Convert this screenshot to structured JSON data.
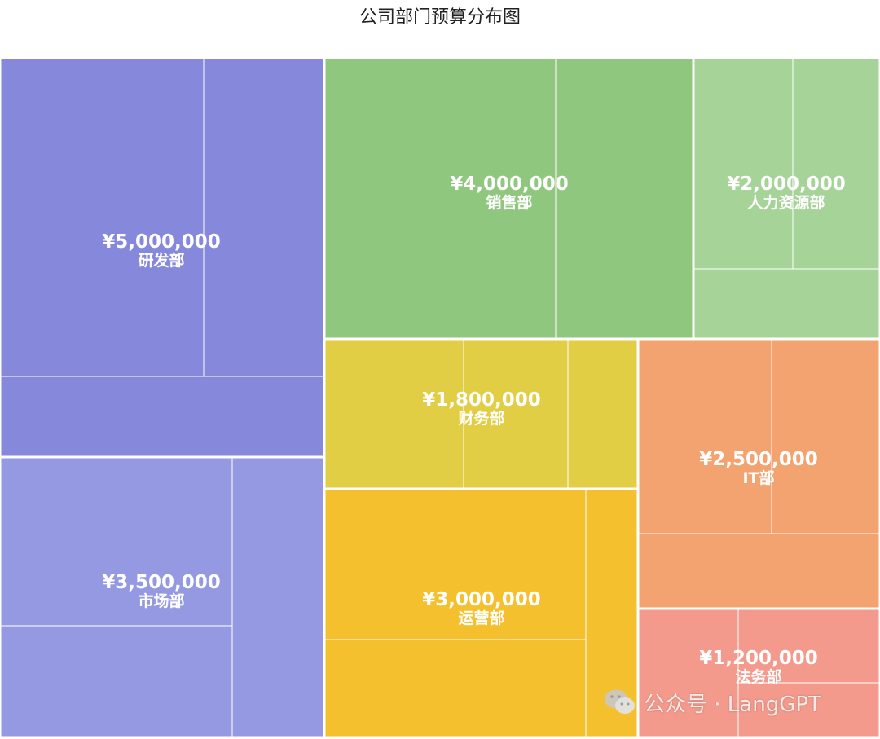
{
  "chart_data": {
    "type": "treemap",
    "title": "公司部门预算分布图",
    "currency_symbol": "¥",
    "nodes": [
      {
        "name": "研发部",
        "value": 5000000,
        "color": "#8588DB"
      },
      {
        "name": "市场部",
        "value": 3500000,
        "color": "#9499E1"
      },
      {
        "name": "销售部",
        "value": 4000000,
        "color": "#90C77E"
      },
      {
        "name": "人力资源部",
        "value": 2000000,
        "color": "#A5D398"
      },
      {
        "name": "财务部",
        "value": 1800000,
        "color": "#E2CE45"
      },
      {
        "name": "运营部",
        "value": 3000000,
        "color": "#F5C02E"
      },
      {
        "name": "IT部",
        "value": 2500000,
        "color": "#F2A370"
      },
      {
        "name": "法务部",
        "value": 1200000,
        "color": "#F49A8C"
      }
    ]
  },
  "watermark": {
    "text": "公众号 · LangGPT"
  }
}
